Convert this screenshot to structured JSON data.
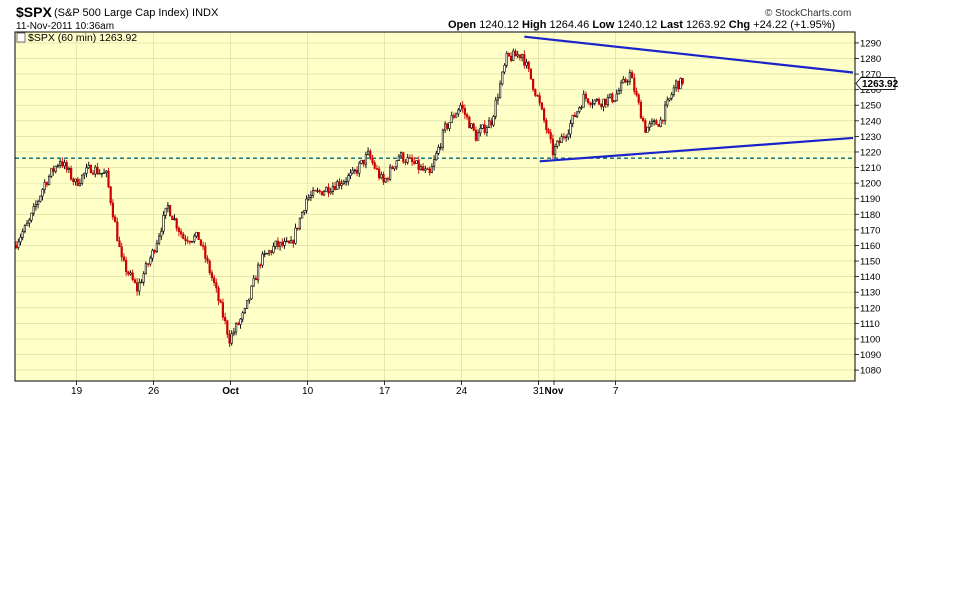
{
  "header": {
    "symbol": "$SPX",
    "description": "(S&P 500 Large Cap Index)",
    "exchange": "INDX",
    "datetime": "11-Nov-2011 10:36am",
    "open_label": "Open",
    "open": "1240.12",
    "high_label": "High",
    "high": "1264.46",
    "low_label": "Low",
    "low": "1240.12",
    "last_label": "Last",
    "last": "1263.92",
    "chg_label": "Chg",
    "chg": "+24.22 (+1.95%)",
    "brand": "© StockCharts.com"
  },
  "chart_data": {
    "type": "candlestick",
    "legend": "$SPX (60 min) 1263.92",
    "legend_position": "top-left",
    "last_price_tag": "1263.92",
    "ylim": [
      1073,
      1297
    ],
    "y_ticks": [
      1080,
      1090,
      1100,
      1110,
      1120,
      1130,
      1140,
      1150,
      1160,
      1170,
      1180,
      1190,
      1200,
      1210,
      1220,
      1230,
      1240,
      1250,
      1260,
      1270,
      1280,
      1290
    ],
    "x_ticks": [
      {
        "label": "19",
        "date": "2011-09-19"
      },
      {
        "label": "26",
        "date": "2011-09-26"
      },
      {
        "label": "Oct",
        "date": "2011-10-03"
      },
      {
        "label": "10",
        "date": "2011-10-10"
      },
      {
        "label": "17",
        "date": "2011-10-17"
      },
      {
        "label": "24",
        "date": "2011-10-24"
      },
      {
        "label": "31",
        "date": "2011-10-31"
      },
      {
        "label": "Nov",
        "date": "2011-11-01"
      },
      {
        "label": "7",
        "date": "2011-11-07"
      }
    ],
    "grid": true,
    "price_path": [
      [
        "2011-09-13",
        1160
      ],
      [
        "2011-09-14",
        1175
      ],
      [
        "2011-09-15",
        1200
      ],
      [
        "2011-09-16",
        1215
      ],
      [
        "2011-09-19",
        1200
      ],
      [
        "2011-09-20",
        1210
      ],
      [
        "2011-09-21",
        1205
      ],
      [
        "2011-09-22",
        1150
      ],
      [
        "2011-09-23",
        1132
      ],
      [
        "2011-09-26",
        1155
      ],
      [
        "2011-09-27",
        1185
      ],
      [
        "2011-09-28",
        1165
      ],
      [
        "2011-09-29",
        1165
      ],
      [
        "2011-09-30",
        1135
      ],
      [
        "2011-10-03",
        1100
      ],
      [
        "2011-10-04",
        1117
      ],
      [
        "2011-10-05",
        1150
      ],
      [
        "2011-10-06",
        1160
      ],
      [
        "2011-10-07",
        1160
      ],
      [
        "2011-10-10",
        1190
      ],
      [
        "2011-10-11",
        1195
      ],
      [
        "2011-10-12",
        1200
      ],
      [
        "2011-10-13",
        1205
      ],
      [
        "2011-10-14",
        1218
      ],
      [
        "2011-10-17",
        1200
      ],
      [
        "2011-10-18",
        1218
      ],
      [
        "2011-10-19",
        1212
      ],
      [
        "2011-10-20",
        1205
      ],
      [
        "2011-10-21",
        1235
      ],
      [
        "2011-10-24",
        1250
      ],
      [
        "2011-10-25",
        1230
      ],
      [
        "2011-10-26",
        1240
      ],
      [
        "2011-10-27",
        1280
      ],
      [
        "2011-10-28",
        1283
      ],
      [
        "2011-10-31",
        1255
      ],
      [
        "2011-11-01",
        1220
      ],
      [
        "2011-11-02",
        1235
      ],
      [
        "2011-11-03",
        1255
      ],
      [
        "2011-11-04",
        1252
      ],
      [
        "2011-11-07",
        1255
      ],
      [
        "2011-11-08",
        1270
      ],
      [
        "2011-11-09",
        1235
      ],
      [
        "2011-11-10",
        1240
      ],
      [
        "2011-11-11",
        1263.92
      ]
    ],
    "horizontal_lines": [
      {
        "value": 1216,
        "style": "dashed"
      }
    ],
    "trendlines": [
      {
        "from": [
          "2011-10-28",
          1294
        ],
        "to": [
          "2011-11-11",
          1271
        ]
      },
      {
        "from": [
          "2011-10-31",
          1214
        ],
        "to": [
          "2011-11-11",
          1229
        ]
      }
    ],
    "colors": {
      "background": "#ffffc8",
      "up": "#000000",
      "down": "#cc0000",
      "trendline": "#1a24c8",
      "hline": "#006a80",
      "grid": "#d8d6a0"
    }
  }
}
